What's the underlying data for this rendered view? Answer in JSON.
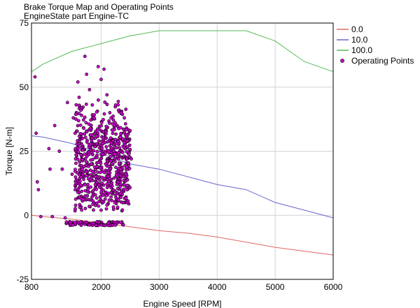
{
  "chart_data": {
    "type": "scatter",
    "title": "Brake Torque Map and Operating Points",
    "subtitle": "EngineState part Engine-TC",
    "xlabel": "Engine Speed [RPM]",
    "ylabel": "Torque [N-m]",
    "xlim": [
      800,
      6000
    ],
    "ylim": [
      -25,
      75
    ],
    "xticks": [
      800,
      2000,
      3000,
      4000,
      5000,
      6000
    ],
    "yticks": [
      -25,
      0,
      25,
      50,
      75
    ],
    "grid": true,
    "legend_position": "right",
    "series": [
      {
        "name": "0.0",
        "kind": "line",
        "color": "#e06666",
        "x": [
          800,
          1000,
          1500,
          2000,
          2500,
          3000,
          3500,
          4000,
          4500,
          5000,
          5500,
          6000
        ],
        "y": [
          0,
          -0.5,
          -1.5,
          -3,
          -4.5,
          -6,
          -7,
          -8.5,
          -10.5,
          -12.5,
          -14,
          -15.5
        ]
      },
      {
        "name": "10.0",
        "kind": "line",
        "color": "#6666cc",
        "x": [
          800,
          1000,
          1500,
          2000,
          2500,
          3000,
          3500,
          4000,
          4500,
          5000,
          5500,
          6000
        ],
        "y": [
          31,
          30.5,
          28,
          24,
          20,
          18,
          15,
          12,
          10,
          5,
          2,
          -1
        ]
      },
      {
        "name": "100.0",
        "kind": "line",
        "color": "#55bb55",
        "x": [
          800,
          1000,
          1500,
          2000,
          2500,
          3000,
          3500,
          4000,
          4500,
          5000,
          5500,
          6000
        ],
        "y": [
          56,
          59,
          64,
          67,
          70,
          72,
          72,
          72,
          72,
          68,
          60,
          56
        ]
      },
      {
        "name": "Operating Points",
        "kind": "scatter",
        "marker_fill": "#cc00cc",
        "marker_edge": "#000000",
        "x_range": [
          800,
          2550
        ],
        "y_range": [
          -4,
          62
        ],
        "points": [
          [
            860,
            54
          ],
          [
            880,
            32
          ],
          [
            900,
            13
          ],
          [
            920,
            10
          ],
          [
            960,
            -0.5
          ],
          [
            1100,
            26
          ],
          [
            1120,
            18
          ],
          [
            1160,
            -0.5
          ],
          [
            1200,
            35
          ],
          [
            1280,
            25
          ],
          [
            1330,
            18
          ],
          [
            1380,
            -1
          ],
          [
            1420,
            44
          ],
          [
            1520,
            38
          ],
          [
            1560,
            22
          ],
          [
            1600,
            52
          ],
          [
            1620,
            46
          ],
          [
            1650,
            41
          ],
          [
            1680,
            30
          ],
          [
            1720,
            62
          ],
          [
            1750,
            55
          ],
          [
            1800,
            49
          ],
          [
            1830,
            20
          ],
          [
            1880,
            38
          ],
          [
            1950,
            58
          ],
          [
            2000,
            53
          ],
          [
            2050,
            57
          ],
          [
            2100,
            47
          ],
          [
            2150,
            40
          ],
          [
            2200,
            32
          ],
          [
            2250,
            43
          ],
          [
            2300,
            41
          ],
          [
            2400,
            38
          ],
          [
            2450,
            29
          ],
          [
            2500,
            33
          ],
          [
            2520,
            22
          ],
          [
            1500,
            16
          ],
          [
            1700,
            14
          ],
          [
            1900,
            12
          ],
          [
            2000,
            2
          ],
          [
            2100,
            4
          ],
          [
            2300,
            6
          ],
          [
            2450,
            10
          ]
        ]
      }
    ]
  }
}
